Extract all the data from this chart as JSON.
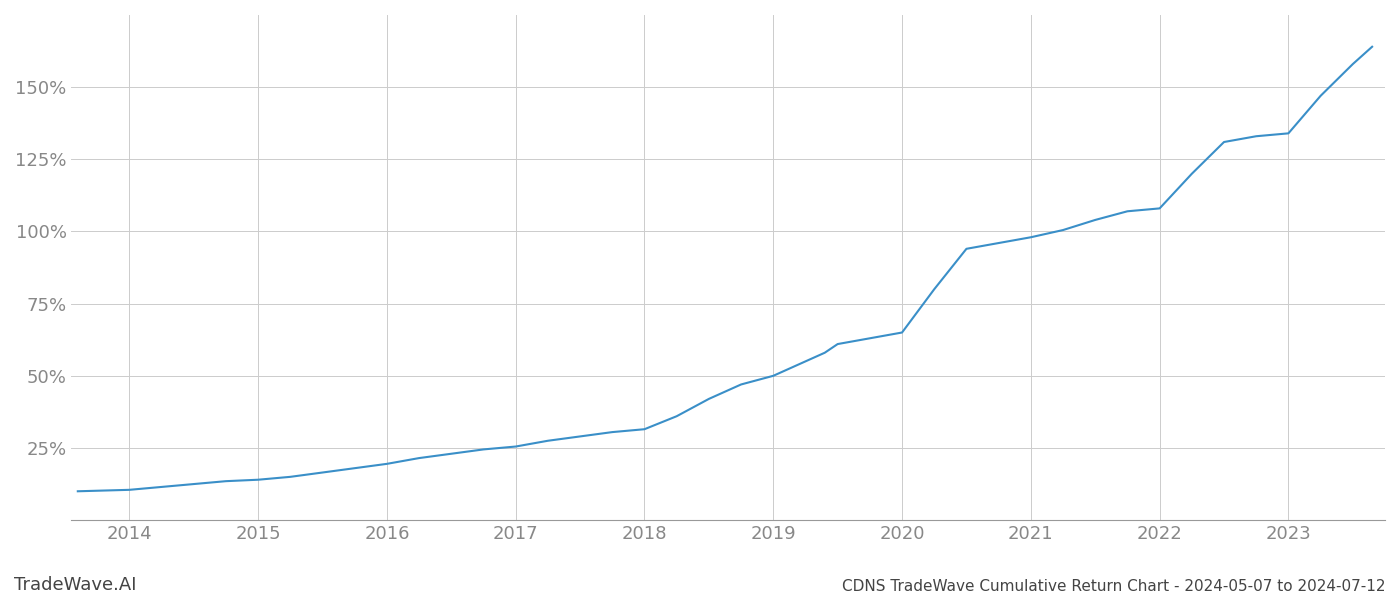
{
  "title": "CDNS TradeWave Cumulative Return Chart - 2024-05-07 to 2024-07-12",
  "watermark": "TradeWave.AI",
  "line_color": "#3a8fc8",
  "line_width": 1.5,
  "background_color": "#ffffff",
  "grid_color": "#cccccc",
  "x_years": [
    2014,
    2015,
    2016,
    2017,
    2018,
    2019,
    2020,
    2021,
    2022,
    2023
  ],
  "x_data": [
    2013.6,
    2014.0,
    2014.25,
    2014.5,
    2014.75,
    2015.0,
    2015.25,
    2015.5,
    2015.75,
    2016.0,
    2016.25,
    2016.5,
    2016.75,
    2017.0,
    2017.25,
    2017.5,
    2017.75,
    2018.0,
    2018.25,
    2018.5,
    2018.75,
    2019.0,
    2019.1,
    2019.25,
    2019.4,
    2019.5,
    2019.75,
    2020.0,
    2020.25,
    2020.5,
    2020.75,
    2021.0,
    2021.25,
    2021.5,
    2021.75,
    2022.0,
    2022.25,
    2022.5,
    2022.75,
    2023.0,
    2023.25,
    2023.5,
    2023.65
  ],
  "y_data": [
    10,
    10.5,
    11.5,
    12.5,
    13.5,
    14.0,
    15.0,
    16.5,
    18.0,
    19.5,
    21.5,
    23.0,
    24.5,
    25.5,
    27.5,
    29.0,
    30.5,
    31.5,
    36.0,
    42.0,
    47.0,
    50.0,
    52.0,
    55.0,
    58.0,
    61.0,
    63.0,
    65.0,
    80.0,
    94.0,
    96.0,
    98.0,
    100.5,
    104.0,
    107.0,
    108.0,
    120.0,
    131.0,
    133.0,
    134.0,
    147.0,
    158.0,
    164.0
  ],
  "ylim_min": 0,
  "ylim_max": 175,
  "xlim_min": 2013.55,
  "xlim_max": 2023.75,
  "yticks": [
    25,
    50,
    75,
    100,
    125,
    150
  ],
  "ytick_labels": [
    "25%",
    "50%",
    "75%",
    "100%",
    "125%",
    "150%"
  ],
  "title_fontsize": 11,
  "tick_fontsize": 13,
  "watermark_fontsize": 13,
  "title_color": "#444444",
  "tick_color": "#888888",
  "watermark_color": "#444444"
}
